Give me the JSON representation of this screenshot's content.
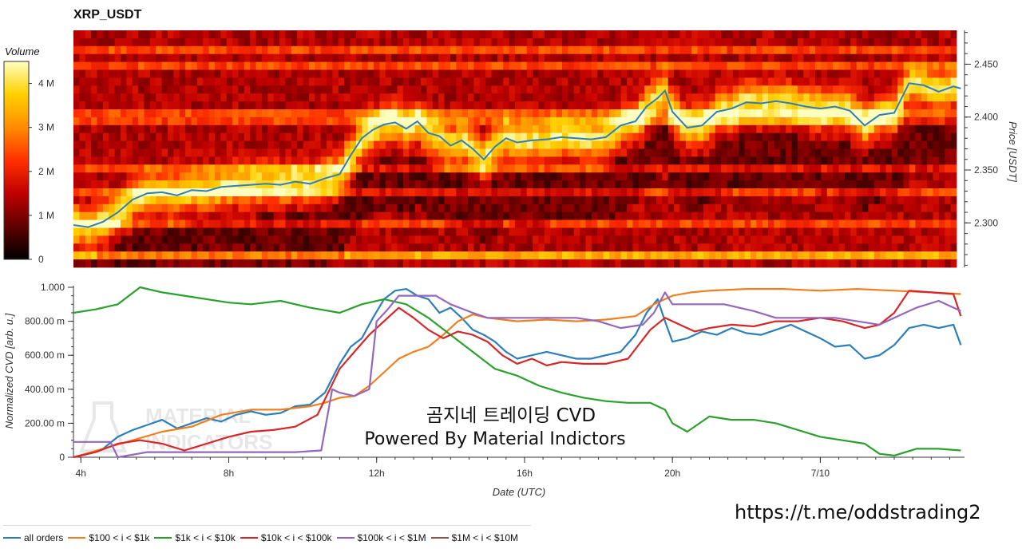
{
  "chart_data": [
    {
      "type": "heatmap",
      "title": "XRP_USDT",
      "ylabel": "Price [USDT]",
      "ylim": [
        2.258,
        2.482
      ],
      "yticks": [
        2.3,
        2.35,
        2.4,
        2.45
      ],
      "ytick_labels": [
        "2.300",
        "2.350",
        "2.400",
        "2.450"
      ],
      "colorbar": {
        "label": "Volume",
        "ticks": [
          "0",
          "1 M",
          "2 M",
          "3 M",
          "4 M"
        ],
        "max": 4.5,
        "colors": [
          "#000000",
          "#600000",
          "#c00000",
          "#ff3000",
          "#ff8c00",
          "#ffd000",
          "#ffffc0"
        ]
      },
      "price_line": {
        "color": "#2e7fb8",
        "x_hours": [
          3.8,
          4.2,
          4.6,
          5.0,
          5.4,
          5.8,
          6.2,
          6.6,
          7.0,
          7.4,
          7.8,
          8.2,
          8.6,
          9.0,
          9.4,
          9.8,
          10.2,
          10.6,
          11.0,
          11.3,
          11.6,
          11.9,
          12.2,
          12.5,
          12.8,
          13.1,
          13.4,
          13.7,
          14.0,
          14.3,
          14.6,
          14.9,
          15.2,
          15.5,
          15.8,
          16.2,
          16.6,
          17.0,
          17.4,
          17.8,
          18.2,
          18.6,
          19.0,
          19.3,
          19.6,
          19.8,
          20.0,
          20.4,
          20.8,
          21.2,
          21.6,
          22.0,
          22.4,
          22.8,
          23.2,
          23.6,
          24.0,
          24.4,
          24.8,
          25.2,
          25.6,
          26.0,
          26.4,
          26.8,
          27.2,
          27.6,
          27.8
        ],
        "y": [
          2.298,
          2.296,
          2.301,
          2.31,
          2.322,
          2.328,
          2.329,
          2.326,
          2.331,
          2.33,
          2.334,
          2.335,
          2.336,
          2.337,
          2.336,
          2.339,
          2.337,
          2.342,
          2.346,
          2.364,
          2.38,
          2.388,
          2.393,
          2.395,
          2.389,
          2.396,
          2.385,
          2.382,
          2.373,
          2.378,
          2.37,
          2.36,
          2.372,
          2.38,
          2.376,
          2.378,
          2.379,
          2.381,
          2.38,
          2.379,
          2.381,
          2.392,
          2.396,
          2.41,
          2.418,
          2.425,
          2.405,
          2.39,
          2.392,
          2.405,
          2.408,
          2.414,
          2.413,
          2.415,
          2.413,
          2.41,
          2.408,
          2.41,
          2.406,
          2.392,
          2.402,
          2.404,
          2.432,
          2.43,
          2.424,
          2.429,
          2.427
        ]
      }
    },
    {
      "type": "line",
      "ylabel": "Normalized CVD [arb. u.]",
      "xlabel": "Date (UTC)",
      "xlim": [
        3.8,
        27.9
      ],
      "ylim": [
        0,
        1.0
      ],
      "xticks": [
        4,
        8,
        12,
        16,
        20,
        24
      ],
      "xtick_labels": [
        "4h",
        "8h",
        "12h",
        "16h",
        "20h",
        "7/10"
      ],
      "yticks": [
        0,
        0.2,
        0.4,
        0.6,
        0.8,
        1.0
      ],
      "ytick_labels": [
        "0",
        "200.00 m",
        "400.00 m",
        "600.00 m",
        "800.00 m",
        "1.000"
      ],
      "annotation": {
        "line1": "곰지네 트레이딩 CVD",
        "line2": "Powered By Material Indictors"
      },
      "series": [
        {
          "name": "all orders",
          "color": "#2e7fb8",
          "x": [
            3.8,
            4.2,
            4.6,
            5.0,
            5.4,
            5.8,
            6.2,
            6.6,
            7.0,
            7.4,
            7.8,
            8.2,
            8.6,
            9.0,
            9.4,
            9.8,
            10.2,
            10.6,
            11.0,
            11.3,
            11.6,
            11.9,
            12.2,
            12.5,
            12.8,
            13.1,
            13.4,
            13.7,
            14.0,
            14.3,
            14.6,
            14.9,
            15.2,
            15.5,
            15.8,
            16.2,
            16.6,
            17.0,
            17.4,
            17.8,
            18.2,
            18.6,
            19.0,
            19.3,
            19.6,
            19.8,
            20.0,
            20.4,
            20.8,
            21.2,
            21.6,
            22.0,
            22.4,
            22.8,
            23.2,
            23.6,
            24.0,
            24.4,
            24.8,
            25.2,
            25.6,
            26.0,
            26.4,
            26.8,
            27.2,
            27.6,
            27.8
          ],
          "values": [
            0.0,
            0.02,
            0.05,
            0.12,
            0.16,
            0.19,
            0.22,
            0.17,
            0.2,
            0.23,
            0.21,
            0.25,
            0.27,
            0.25,
            0.26,
            0.3,
            0.31,
            0.38,
            0.55,
            0.65,
            0.7,
            0.82,
            0.93,
            0.98,
            0.99,
            0.95,
            0.93,
            0.85,
            0.88,
            0.82,
            0.75,
            0.72,
            0.68,
            0.62,
            0.58,
            0.6,
            0.62,
            0.6,
            0.58,
            0.58,
            0.6,
            0.62,
            0.72,
            0.85,
            0.93,
            0.8,
            0.68,
            0.7,
            0.74,
            0.72,
            0.76,
            0.73,
            0.72,
            0.75,
            0.78,
            0.74,
            0.7,
            0.65,
            0.66,
            0.58,
            0.6,
            0.66,
            0.76,
            0.78,
            0.76,
            0.78,
            0.66
          ]
        },
        {
          "name": "$100 < i < $1k",
          "color": "#f07f1f",
          "x": [
            3.8,
            4.6,
            5.4,
            6.2,
            7.0,
            7.8,
            8.6,
            9.4,
            10.2,
            10.6,
            11.0,
            11.4,
            11.8,
            12.2,
            12.6,
            13.0,
            13.4,
            13.8,
            14.2,
            14.6,
            15.0,
            15.8,
            16.6,
            17.4,
            18.2,
            19.0,
            19.5,
            20.0,
            20.5,
            21.0,
            22.0,
            23.0,
            24.0,
            25.0,
            26.0,
            27.0,
            27.8
          ],
          "values": [
            0.0,
            0.05,
            0.1,
            0.15,
            0.18,
            0.25,
            0.28,
            0.28,
            0.3,
            0.32,
            0.35,
            0.36,
            0.42,
            0.5,
            0.58,
            0.62,
            0.65,
            0.72,
            0.8,
            0.84,
            0.82,
            0.8,
            0.81,
            0.8,
            0.81,
            0.83,
            0.9,
            0.95,
            0.97,
            0.98,
            0.99,
            0.99,
            0.98,
            0.99,
            0.98,
            0.97,
            0.96
          ]
        },
        {
          "name": "$1k < i < $10k",
          "color": "#2ca02c",
          "x": [
            3.8,
            4.4,
            5.0,
            5.6,
            6.2,
            6.8,
            7.4,
            8.0,
            8.6,
            9.4,
            10.2,
            11.0,
            11.6,
            12.2,
            12.8,
            13.4,
            14.0,
            14.6,
            15.2,
            15.8,
            16.4,
            17.0,
            17.6,
            18.2,
            18.8,
            19.4,
            19.8,
            20.0,
            20.4,
            21.0,
            21.6,
            22.2,
            22.8,
            23.4,
            24.0,
            24.6,
            25.2,
            25.6,
            26.0,
            26.6,
            27.2,
            27.8
          ],
          "values": [
            0.85,
            0.87,
            0.9,
            1.0,
            0.97,
            0.95,
            0.93,
            0.91,
            0.9,
            0.92,
            0.88,
            0.85,
            0.9,
            0.93,
            0.9,
            0.82,
            0.72,
            0.62,
            0.52,
            0.48,
            0.42,
            0.38,
            0.35,
            0.33,
            0.32,
            0.32,
            0.28,
            0.2,
            0.15,
            0.24,
            0.22,
            0.22,
            0.2,
            0.16,
            0.12,
            0.1,
            0.08,
            0.02,
            0.01,
            0.05,
            0.05,
            0.04
          ]
        },
        {
          "name": "$10k < i < $100k",
          "color": "#d62728",
          "x": [
            3.8,
            4.4,
            5.0,
            5.6,
            6.2,
            6.8,
            7.4,
            8.0,
            8.6,
            9.2,
            9.8,
            10.4,
            11.0,
            11.4,
            11.8,
            12.2,
            12.6,
            13.0,
            13.4,
            13.8,
            14.2,
            14.6,
            15.0,
            15.4,
            15.8,
            16.2,
            16.6,
            17.0,
            17.6,
            18.2,
            18.8,
            19.4,
            19.8,
            20.2,
            20.6,
            21.0,
            21.6,
            22.2,
            22.8,
            23.4,
            24.0,
            24.6,
            25.2,
            25.6,
            26.0,
            26.4,
            27.0,
            27.6,
            27.8
          ],
          "values": [
            0.0,
            0.03,
            0.08,
            0.1,
            0.08,
            0.04,
            0.08,
            0.12,
            0.15,
            0.16,
            0.18,
            0.25,
            0.52,
            0.62,
            0.72,
            0.8,
            0.88,
            0.82,
            0.75,
            0.7,
            0.74,
            0.72,
            0.68,
            0.6,
            0.55,
            0.58,
            0.54,
            0.56,
            0.55,
            0.55,
            0.58,
            0.75,
            0.82,
            0.78,
            0.74,
            0.76,
            0.78,
            0.77,
            0.8,
            0.8,
            0.82,
            0.8,
            0.76,
            0.78,
            0.85,
            0.98,
            0.97,
            0.96,
            0.83
          ]
        },
        {
          "name": "$100k < i < $1M",
          "color": "#9467bd",
          "x": [
            3.8,
            4.8,
            5.0,
            5.8,
            6.6,
            7.4,
            8.2,
            9.0,
            9.8,
            10.5,
            10.8,
            11.0,
            11.4,
            11.8,
            12.0,
            12.3,
            12.6,
            13.0,
            13.6,
            14.0,
            14.6,
            15.0,
            15.6,
            16.2,
            16.8,
            17.4,
            18.0,
            18.6,
            19.2,
            19.5,
            19.8,
            20.0,
            20.6,
            21.4,
            22.2,
            22.8,
            23.6,
            24.4,
            25.0,
            25.6,
            26.0,
            26.6,
            27.2,
            27.8
          ],
          "values": [
            0.09,
            0.09,
            0.0,
            0.03,
            0.03,
            0.03,
            0.03,
            0.03,
            0.03,
            0.04,
            0.4,
            0.38,
            0.36,
            0.4,
            0.8,
            0.87,
            0.95,
            0.95,
            0.95,
            0.9,
            0.85,
            0.82,
            0.82,
            0.82,
            0.82,
            0.82,
            0.8,
            0.76,
            0.78,
            0.85,
            0.97,
            0.9,
            0.9,
            0.9,
            0.86,
            0.82,
            0.82,
            0.82,
            0.8,
            0.78,
            0.82,
            0.88,
            0.92,
            0.86
          ]
        },
        {
          "name": "$1M < i < $10M",
          "color": "#8c564b",
          "x": [],
          "values": []
        }
      ]
    }
  ],
  "legend": {
    "items": [
      {
        "label": "all orders",
        "color": "#2e7fb8"
      },
      {
        "label": "$100 < i < $1k",
        "color": "#f07f1f"
      },
      {
        "label": "$1k < i < $10k",
        "color": "#2ca02c"
      },
      {
        "label": "$10k < i < $100k",
        "color": "#d62728"
      },
      {
        "label": "$100k < i < $1M",
        "color": "#9467bd"
      },
      {
        "label": "$1M < i < $10M",
        "color": "#8c564b"
      }
    ]
  },
  "watermark": {
    "line1": "MATERIAL",
    "line2": "INDICATORS"
  },
  "footer": {
    "url": "https://t.me/oddstrading2"
  }
}
